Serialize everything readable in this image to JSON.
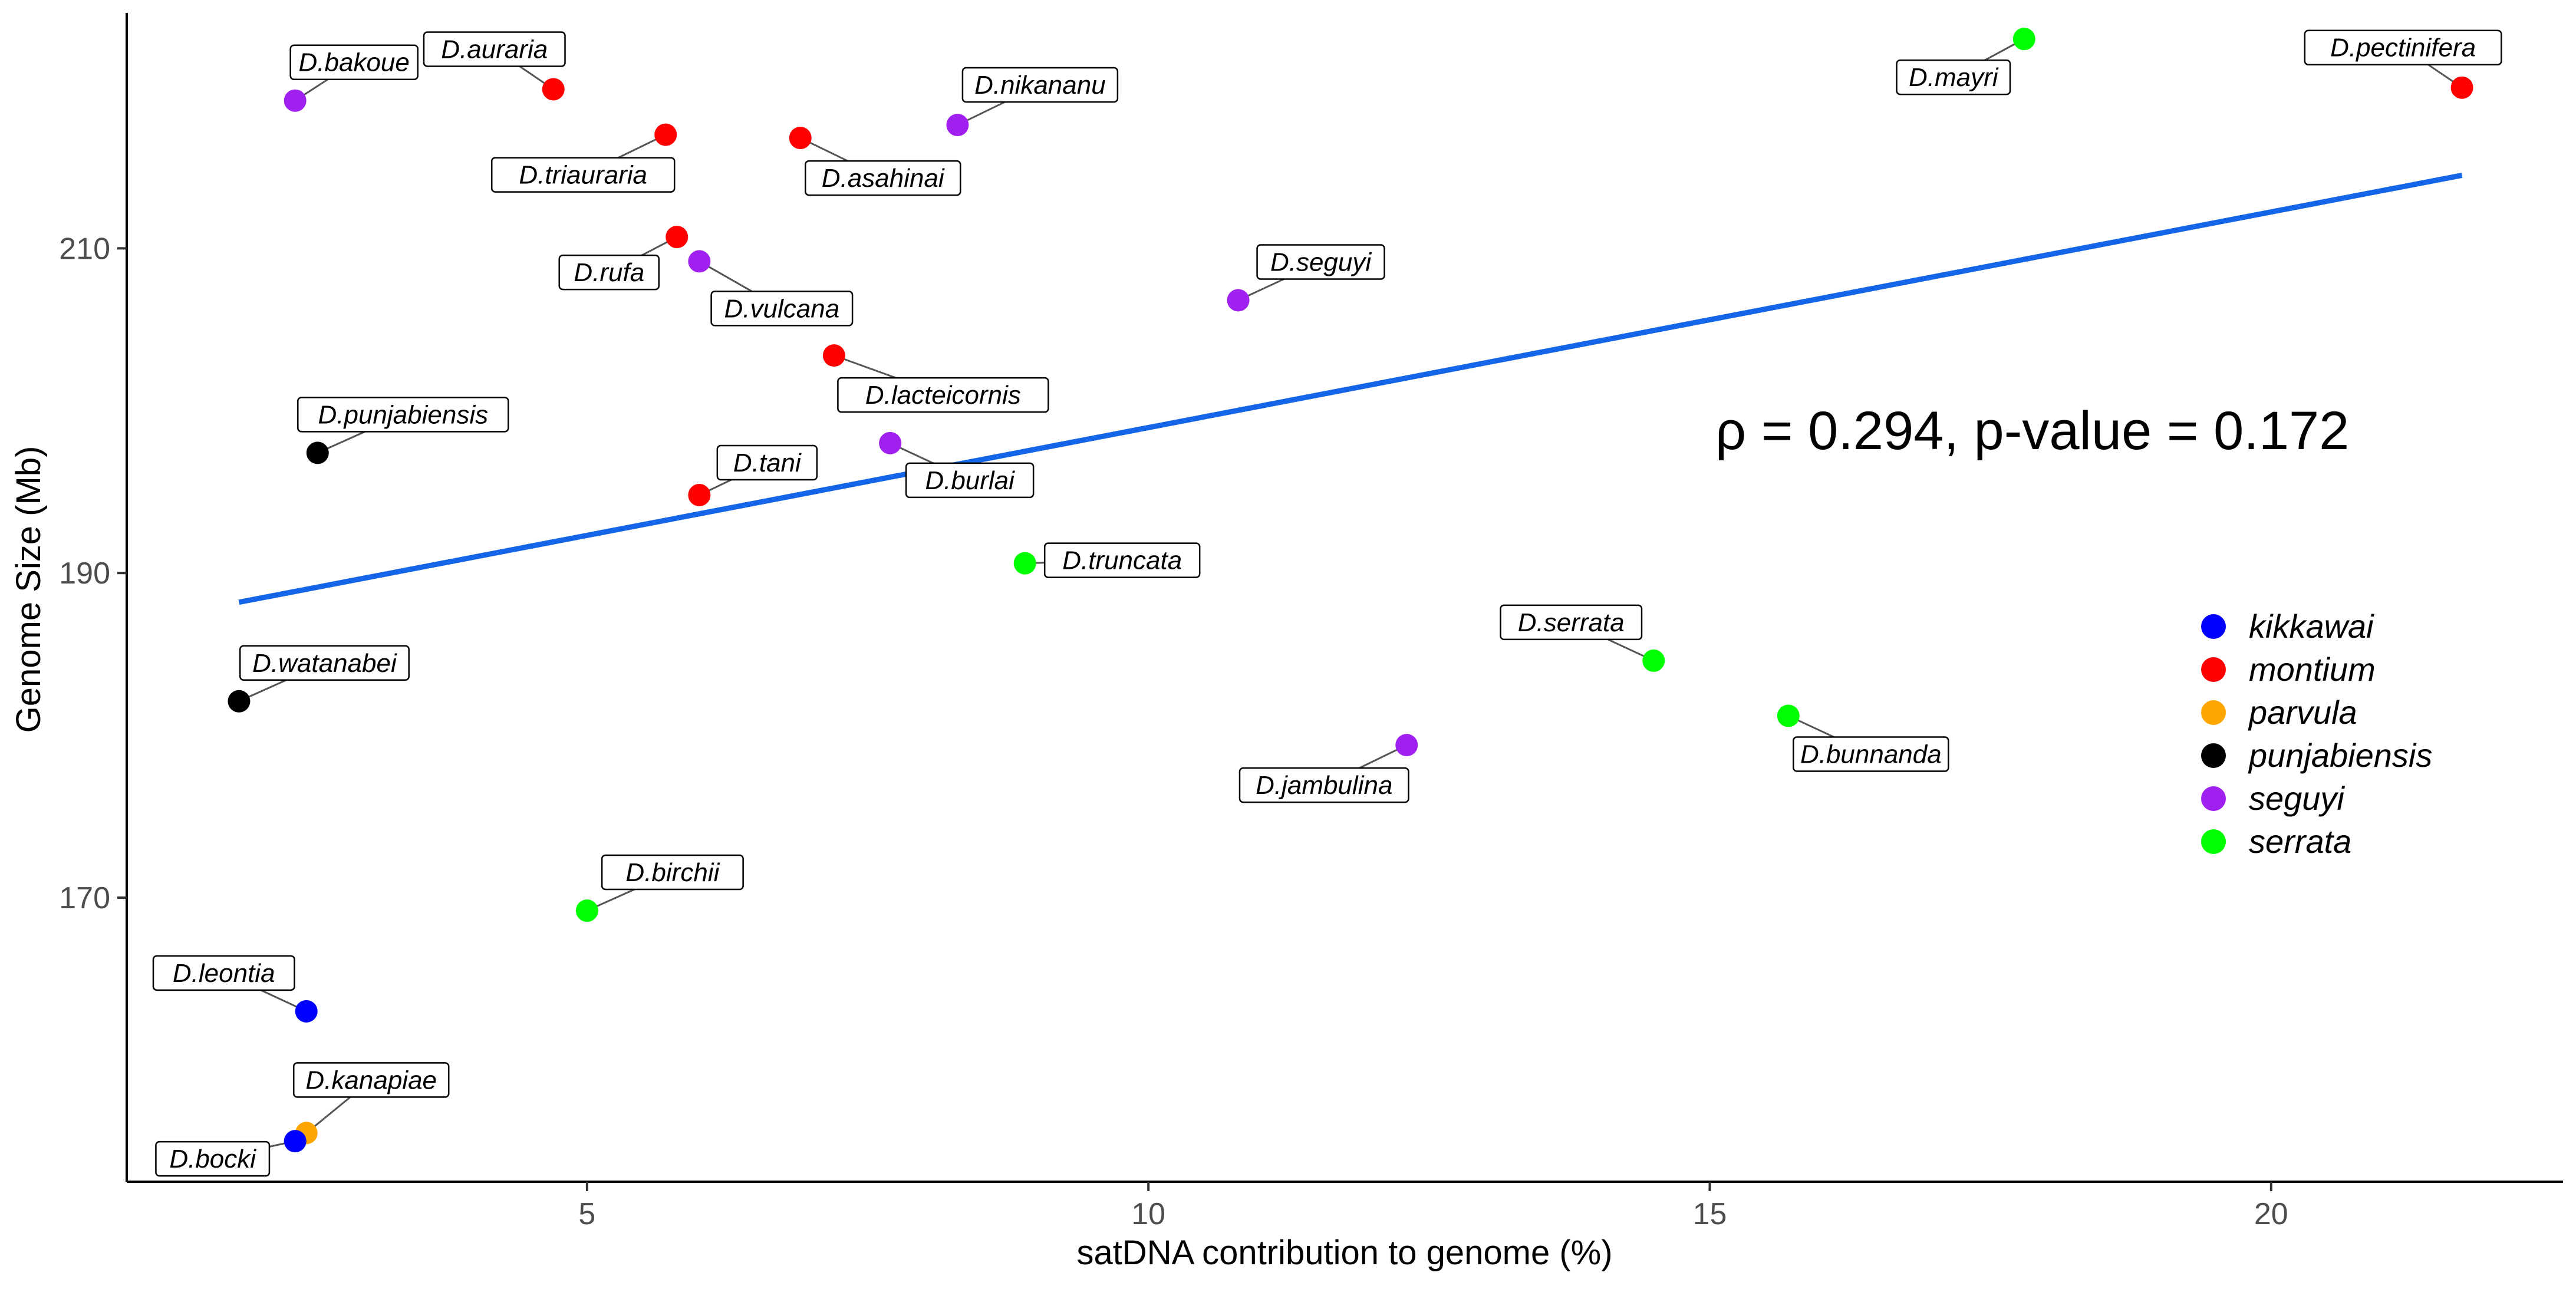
{
  "chart_data": {
    "type": "scatter",
    "title": "",
    "xlabel": "satDNA contribution to genome (%)",
    "ylabel": "Genome Size (Mb)",
    "xlim": [
      0.9,
      22.6
    ],
    "ylim": [
      152.5,
      224.5
    ],
    "xticks": [
      5,
      10,
      15,
      20
    ],
    "yticks": [
      170,
      190,
      210
    ],
    "grid": false,
    "legend_position": "right",
    "annotation": "ρ = 0.294, p-value = 0.172",
    "regression_line": {
      "x": [
        1.9,
        21.7
      ],
      "y": [
        188.2,
        214.5
      ],
      "color": "#1565e8"
    },
    "groups": [
      {
        "name": "kikkawai",
        "color": "#0000ff"
      },
      {
        "name": "montium",
        "color": "#ff0000"
      },
      {
        "name": "parvula",
        "color": "#ffa500"
      },
      {
        "name": "punjabiensis",
        "color": "#000000"
      },
      {
        "name": "seguyi",
        "color": "#a020f0"
      },
      {
        "name": "serrata",
        "color": "#00ff00"
      }
    ],
    "points": [
      {
        "label": "D.bakoue",
        "x": 2.4,
        "y": 219.1,
        "group": "seguyi"
      },
      {
        "label": "D.auraria",
        "x": 4.7,
        "y": 219.8,
        "group": "montium"
      },
      {
        "label": "D.triauraria",
        "x": 5.7,
        "y": 217.0,
        "group": "montium"
      },
      {
        "label": "D.asahinai",
        "x": 6.9,
        "y": 216.8,
        "group": "montium"
      },
      {
        "label": "D.nikananu",
        "x": 8.3,
        "y": 217.6,
        "group": "seguyi"
      },
      {
        "label": "D.mayri",
        "x": 17.8,
        "y": 222.9,
        "group": "serrata"
      },
      {
        "label": "D.pectinifera",
        "x": 21.7,
        "y": 219.9,
        "group": "montium"
      },
      {
        "label": "D.rufa",
        "x": 5.8,
        "y": 210.7,
        "group": "montium"
      },
      {
        "label": "D.vulcana",
        "x": 6.0,
        "y": 209.2,
        "group": "seguyi"
      },
      {
        "label": "D.seguyi",
        "x": 10.8,
        "y": 206.8,
        "group": "seguyi"
      },
      {
        "label": "D.lacteicornis",
        "x": 7.2,
        "y": 203.4,
        "group": "montium"
      },
      {
        "label": "D.punjabiensis",
        "x": 2.6,
        "y": 197.4,
        "group": "punjabiensis"
      },
      {
        "label": "D.tani",
        "x": 6.0,
        "y": 194.8,
        "group": "montium"
      },
      {
        "label": "D.burlai",
        "x": 7.7,
        "y": 198.0,
        "group": "seguyi"
      },
      {
        "label": "D.truncata",
        "x": 8.9,
        "y": 190.6,
        "group": "serrata"
      },
      {
        "label": "D.watanabei",
        "x": 1.9,
        "y": 182.1,
        "group": "punjabiensis"
      },
      {
        "label": "D.serrata",
        "x": 14.5,
        "y": 184.6,
        "group": "serrata"
      },
      {
        "label": "D.bunnanda",
        "x": 15.7,
        "y": 181.2,
        "group": "serrata"
      },
      {
        "label": "D.jambulina",
        "x": 12.3,
        "y": 179.4,
        "group": "seguyi"
      },
      {
        "label": "D.birchii",
        "x": 5.0,
        "y": 169.2,
        "group": "serrata"
      },
      {
        "label": "D.leontia",
        "x": 2.5,
        "y": 163.0,
        "group": "kikkawai"
      },
      {
        "label": "D.kanapiae",
        "x": 2.5,
        "y": 155.5,
        "group": "parvula"
      },
      {
        "label": "D.bocki",
        "x": 2.4,
        "y": 155.0,
        "group": "kikkawai"
      }
    ]
  }
}
